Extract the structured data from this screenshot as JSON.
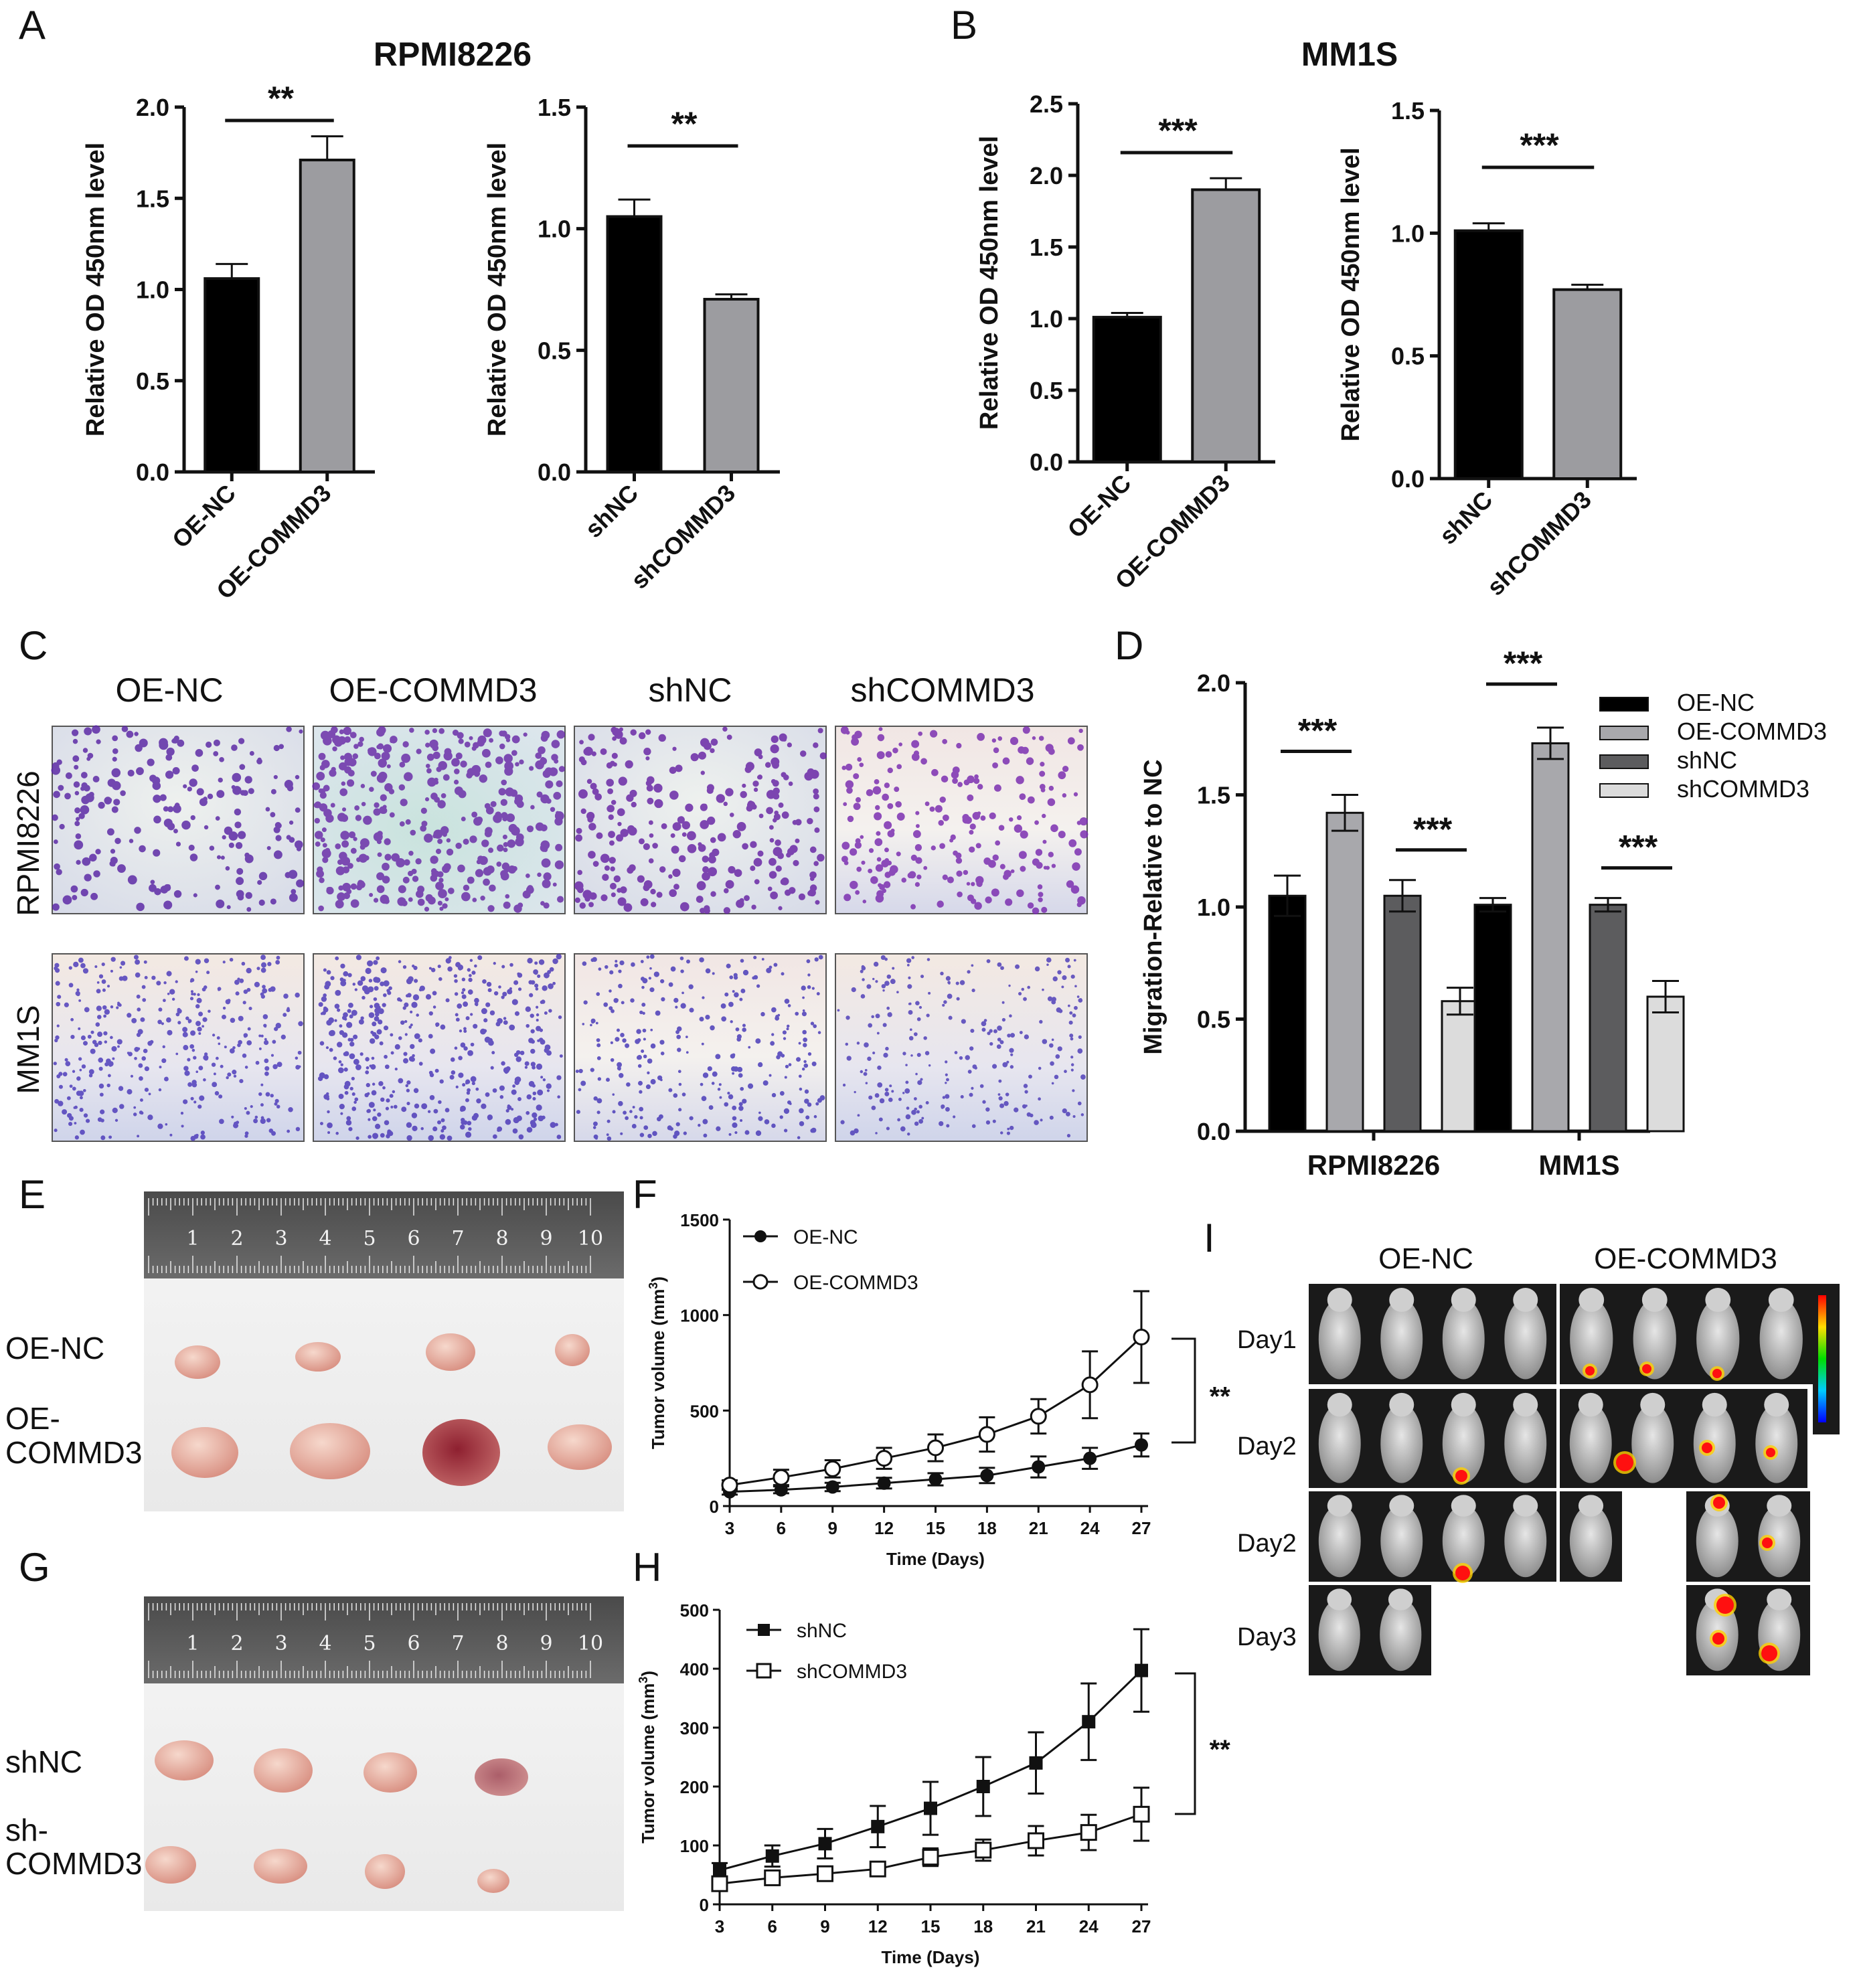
{
  "panels": {
    "A": "A",
    "B": "B",
    "C": "C",
    "D": "D",
    "E": "E",
    "F": "F",
    "G": "G",
    "H": "H",
    "I": "I"
  },
  "chart_data": [
    {
      "id": "A1",
      "type": "bar",
      "title": "RPMI8226",
      "ylabel": "Relative OD 450nm level",
      "ylim": [
        0,
        2.0
      ],
      "yticks": [
        "0.0",
        "0.5",
        "1.0",
        "1.5",
        "2.0"
      ],
      "categories": [
        "OE-NC",
        "OE-COMMD3"
      ],
      "values": [
        1.06,
        1.71
      ],
      "errors": [
        0.08,
        0.13
      ],
      "colors": [
        "#000000",
        "#9c9ca0"
      ],
      "significance": "**"
    },
    {
      "id": "A2",
      "type": "bar",
      "ylabel": "Relative OD 450nm level",
      "ylim": [
        0,
        1.5
      ],
      "yticks": [
        "0.0",
        "0.5",
        "1.0",
        "1.5"
      ],
      "categories": [
        "shNC",
        "shCOMMD3"
      ],
      "values": [
        1.05,
        0.71
      ],
      "errors": [
        0.07,
        0.02
      ],
      "colors": [
        "#000000",
        "#9c9ca0"
      ],
      "significance": "**"
    },
    {
      "id": "B1",
      "type": "bar",
      "title": "MM1S",
      "ylabel": "Relative OD 450nm level",
      "ylim": [
        0,
        2.5
      ],
      "yticks": [
        "0.0",
        "0.5",
        "1.0",
        "1.5",
        "2.0",
        "2.5"
      ],
      "categories": [
        "OE-NC",
        "OE-COMMD3"
      ],
      "values": [
        1.01,
        1.9
      ],
      "errors": [
        0.03,
        0.08
      ],
      "colors": [
        "#000000",
        "#9c9ca0"
      ],
      "significance": "***"
    },
    {
      "id": "B2",
      "type": "bar",
      "ylabel": "Relative OD 450nm level",
      "ylim": [
        0,
        1.5
      ],
      "yticks": [
        "0.0",
        "0.5",
        "1.0",
        "1.5"
      ],
      "categories": [
        "shNC",
        "shCOMMD3"
      ],
      "values": [
        1.01,
        0.77
      ],
      "errors": [
        0.03,
        0.02
      ],
      "colors": [
        "#000000",
        "#9c9ca0"
      ],
      "significance": "***"
    },
    {
      "id": "D",
      "type": "bar",
      "ylabel": "Migration-Relative to NC",
      "ylim": [
        0,
        2.0
      ],
      "yticks": [
        "0.0",
        "0.5",
        "1.0",
        "1.5",
        "2.0"
      ],
      "categories": [
        "RPMI8226",
        "MM1S"
      ],
      "series": [
        {
          "name": "OE-NC",
          "color": "#000000",
          "values": [
            1.05,
            1.01
          ],
          "errors": [
            0.09,
            0.03
          ]
        },
        {
          "name": "OE-COMMD3",
          "color": "#a8a8ac",
          "values": [
            1.42,
            1.73
          ],
          "errors": [
            0.08,
            0.07
          ]
        },
        {
          "name": "shNC",
          "color": "#5c5c5e",
          "values": [
            1.05,
            1.01
          ],
          "errors": [
            0.07,
            0.03
          ]
        },
        {
          "name": "shCOMMD3",
          "color": "#dcdcdc",
          "values": [
            0.58,
            0.6
          ],
          "errors": [
            0.06,
            0.07
          ]
        }
      ],
      "significance": [
        "***",
        "***",
        "***",
        "***"
      ]
    },
    {
      "id": "F",
      "type": "line",
      "xlabel": "Time (Days)",
      "ylabel": "Tumor volume (mm",
      "ylabel_sup": "3",
      "ylabel_end": ")",
      "ylim": [
        0,
        1500
      ],
      "yticks": [
        "0",
        "500",
        "1000",
        "1500"
      ],
      "x": [
        3,
        6,
        9,
        12,
        15,
        18,
        21,
        24,
        27
      ],
      "series": [
        {
          "name": "OE-NC",
          "marker": "filled-circle",
          "values": [
            75,
            85,
            100,
            120,
            140,
            160,
            205,
            250,
            320
          ],
          "errors": [
            15,
            18,
            22,
            28,
            32,
            40,
            55,
            55,
            60
          ]
        },
        {
          "name": "OE-COMMD3",
          "marker": "open-circle",
          "values": [
            110,
            150,
            195,
            250,
            305,
            375,
            470,
            635,
            885
          ],
          "errors": [
            25,
            40,
            45,
            55,
            70,
            90,
            90,
            175,
            240
          ]
        }
      ],
      "significance": "**"
    },
    {
      "id": "H",
      "type": "line",
      "xlabel": "Time (Days)",
      "ylabel": "Tumor volume (mm",
      "ylabel_sup": "3",
      "ylabel_end": ")",
      "ylim": [
        0,
        500
      ],
      "yticks": [
        "0",
        "100",
        "200",
        "300",
        "400",
        "500"
      ],
      "x": [
        3,
        6,
        9,
        12,
        15,
        18,
        21,
        24,
        27
      ],
      "series": [
        {
          "name": "shNC",
          "marker": "filled-square",
          "values": [
            58,
            82,
            103,
            132,
            163,
            200,
            240,
            310,
            397
          ],
          "errors": [
            12,
            18,
            25,
            35,
            45,
            50,
            52,
            65,
            70
          ]
        },
        {
          "name": "shCOMMD3",
          "marker": "open-square",
          "values": [
            35,
            45,
            52,
            60,
            80,
            92,
            108,
            122,
            153
          ],
          "errors": [
            10,
            12,
            10,
            10,
            15,
            18,
            25,
            30,
            45
          ]
        }
      ],
      "significance": "**"
    }
  ],
  "panelC": {
    "columns": [
      "OE-NC",
      "OE-COMMD3",
      "shNC",
      "shCOMMD3"
    ],
    "rows": [
      "RPMI8226",
      "MM1S"
    ]
  },
  "panelE": {
    "ruler_numbers": [
      "1",
      "2",
      "3",
      "4",
      "5",
      "6",
      "7",
      "8",
      "9",
      "10"
    ],
    "row_labels": [
      "OE-NC",
      "OE-",
      "COMMD3"
    ]
  },
  "panelG": {
    "ruler_numbers": [
      "1",
      "2",
      "3",
      "4",
      "5",
      "6",
      "7",
      "8",
      "9",
      "10"
    ],
    "row_labels": [
      "shNC",
      "sh-",
      "COMMD3"
    ]
  },
  "panelI": {
    "columns": [
      "OE-NC",
      "OE-COMMD3"
    ],
    "rows": [
      "Day1",
      "Day2",
      "Day2",
      "Day3"
    ]
  }
}
